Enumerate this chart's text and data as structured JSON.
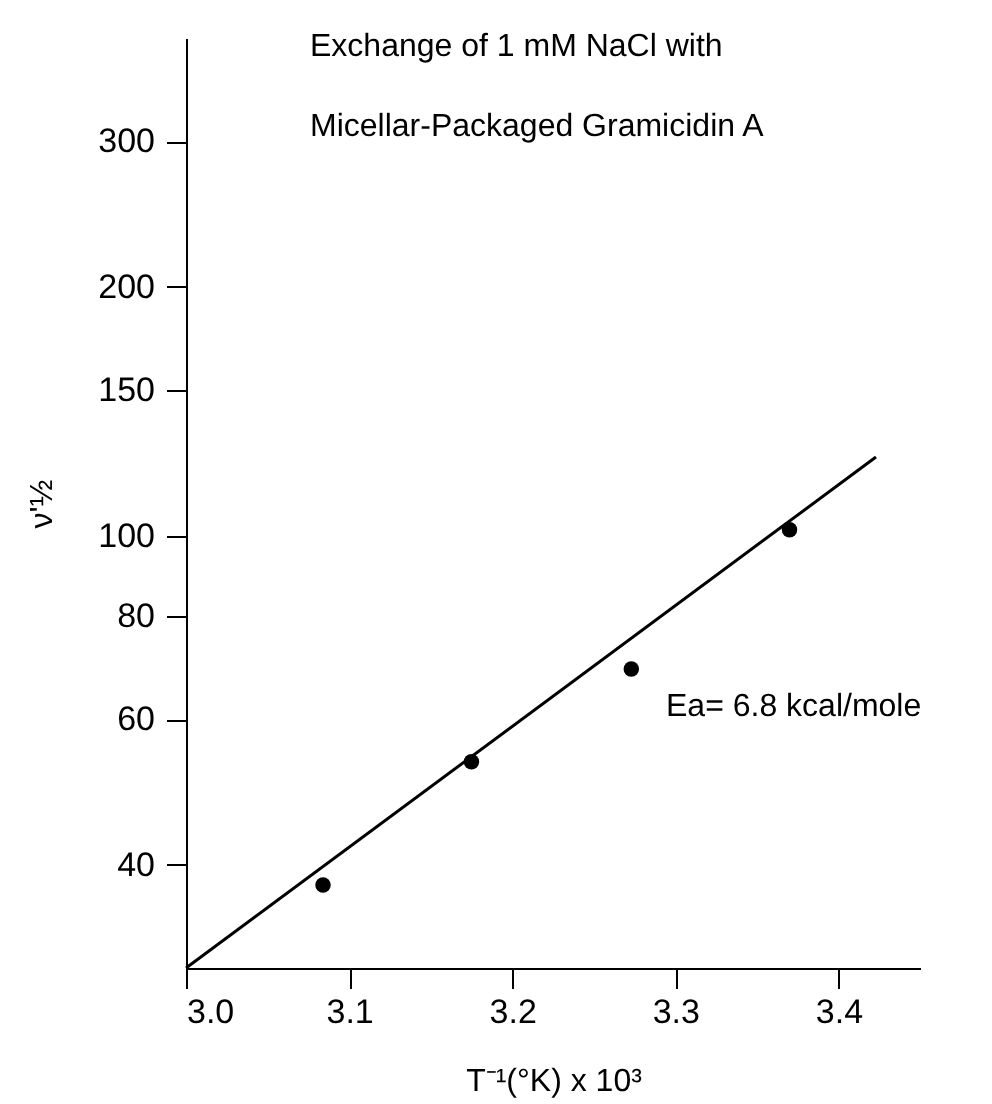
{
  "chart_data": {
    "type": "scatter",
    "title": "Exchange of 1 mM NaCl with\nMicellar-Packaged Gramicidin A",
    "xlabel": "T⁻¹(°K) x 10³",
    "ylabel": "ν'½",
    "x": [
      3.084,
      3.175,
      3.273,
      3.37
    ],
    "series": [
      {
        "color": "#000000",
        "marker": "circle",
        "values": [
          37.8,
          53.3,
          69,
          101.7
        ]
      },
      {
        "type": "line",
        "color": "#000000",
        "marker": "none",
        "line_style": "solid",
        "x": [
          3.0,
          3.423
        ],
        "values": [
          30,
          124.5
        ]
      }
    ],
    "annotations": [
      "Ea= 6.8 kcal/mole"
    ],
    "xlim": [
      3.0,
      3.45
    ],
    "xticks": [
      {
        "value": 3.0,
        "label": "3.0"
      },
      3.1,
      3.2,
      3.3,
      {
        "value": 3.4,
        "label": "3.4"
      }
    ],
    "ylim": [
      30,
      400
    ],
    "yticks": [
      40,
      60,
      80,
      100,
      150,
      200,
      300
    ],
    "log": "y",
    "grid": false
  }
}
